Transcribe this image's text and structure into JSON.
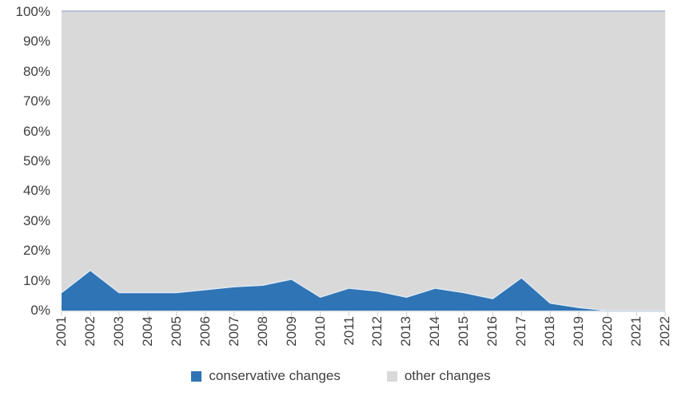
{
  "chart_data": {
    "type": "area",
    "subtype": "100-percent-stacked",
    "title": "",
    "xlabel": "",
    "ylabel": "",
    "categories": [
      "2001",
      "2002",
      "2003",
      "2004",
      "2005",
      "2006",
      "2007",
      "2008",
      "2009",
      "2010",
      "2011",
      "2012",
      "2013",
      "2014",
      "2015",
      "2016",
      "2017",
      "2018",
      "2019",
      "2020",
      "2021",
      "2022"
    ],
    "series": [
      {
        "name": "conservative changes",
        "color": "#2F74B4",
        "values": [
          6,
          13.5,
          6,
          6,
          6,
          7,
          8,
          8.5,
          10.5,
          4.5,
          7.5,
          6.5,
          4.5,
          7.5,
          6,
          4,
          11,
          2.5,
          1,
          0,
          0,
          0
        ]
      },
      {
        "name": "other changes",
        "color": "#D9D9D9",
        "values": [
          94,
          86.5,
          94,
          94,
          94,
          93,
          92,
          91.5,
          89.5,
          95.5,
          92.5,
          93.5,
          95.5,
          92.5,
          94,
          96,
          89,
          97.5,
          99,
          100,
          100,
          100
        ]
      }
    ],
    "ylim": [
      0,
      100
    ],
    "ytick_labels": [
      "0%",
      "10%",
      "20%",
      "30%",
      "40%",
      "50%",
      "60%",
      "70%",
      "80%",
      "90%",
      "100%"
    ],
    "legend_position": "bottom-center",
    "grid": "off",
    "colors": {
      "text": "#3f3f3f",
      "axis_line": "#c6cfda",
      "plot_top_border": "#b5c1d3",
      "series_boundary_stroke": "#dde7f2"
    }
  }
}
